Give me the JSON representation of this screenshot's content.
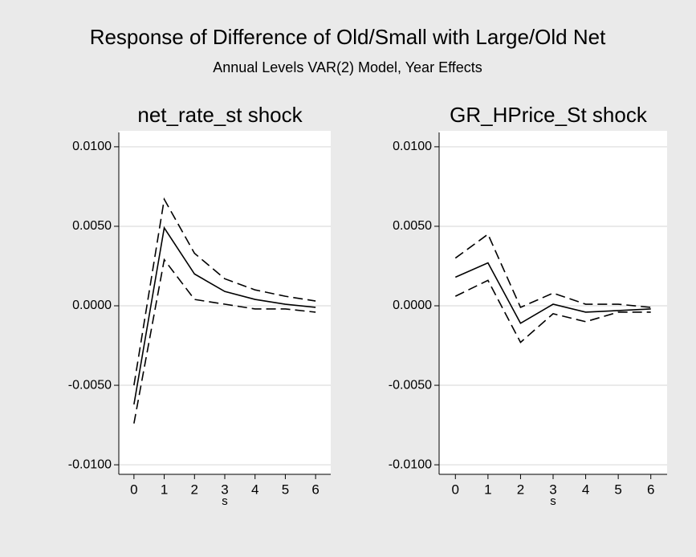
{
  "title": "Response of Difference of Old/Small with Large/Old Net",
  "subtitle": "Annual Levels VAR(2) Model, Year Effects",
  "chart_data": [
    {
      "type": "line",
      "title": "net_rate_st shock",
      "xlabel": "s",
      "x": [
        0,
        1,
        2,
        3,
        4,
        5,
        6
      ],
      "xlim": [
        -0.5,
        6.5
      ],
      "xticks": [
        0,
        1,
        2,
        3,
        4,
        5,
        6
      ],
      "ylim": [
        -0.0106,
        0.0106
      ],
      "yticks": [
        {
          "value": -0.01,
          "label": "-0.0100"
        },
        {
          "value": -0.005,
          "label": "-0.0050"
        },
        {
          "value": 0,
          "label": "0.0000"
        },
        {
          "value": 0.005,
          "label": "0.0050"
        },
        {
          "value": 0.01,
          "label": "0.0100"
        }
      ],
      "grid": true,
      "series": [
        {
          "color": "#000000",
          "dashed": false,
          "values": [
            -0.0062,
            0.0049,
            0.002,
            0.0009,
            0.0004,
            0.0001,
            -0.0001
          ]
        },
        {
          "color": "#000000",
          "dashed": true,
          "values": [
            -0.005,
            0.0067,
            0.0033,
            0.0017,
            0.001,
            0.0006,
            0.0003
          ]
        },
        {
          "color": "#000000",
          "dashed": true,
          "values": [
            -0.0074,
            0.0029,
            0.0004,
            0.0001,
            -0.0002,
            -0.0002,
            -0.0004
          ]
        }
      ]
    },
    {
      "type": "line",
      "title": "GR_HPrice_St shock",
      "xlabel": "s",
      "x": [
        0,
        1,
        2,
        3,
        4,
        5,
        6
      ],
      "xlim": [
        -0.5,
        6.5
      ],
      "xticks": [
        0,
        1,
        2,
        3,
        4,
        5,
        6
      ],
      "ylim": [
        -0.0106,
        0.0106
      ],
      "yticks": [
        {
          "value": -0.01,
          "label": "-0.0100"
        },
        {
          "value": -0.005,
          "label": "-0.0050"
        },
        {
          "value": 0,
          "label": "0.0000"
        },
        {
          "value": 0.005,
          "label": "0.0050"
        },
        {
          "value": 0.01,
          "label": "0.0100"
        }
      ],
      "grid": true,
      "series": [
        {
          "color": "#000000",
          "dashed": false,
          "values": [
            0.0018,
            0.0027,
            -0.0011,
            0.0001,
            -0.0004,
            -0.0003,
            -0.0002
          ]
        },
        {
          "color": "#000000",
          "dashed": true,
          "values": [
            0.003,
            0.0045,
            -0.0001,
            0.0008,
            0.0001,
            0.0001,
            -0.0001
          ]
        },
        {
          "color": "#000000",
          "dashed": true,
          "values": [
            0.0006,
            0.0016,
            -0.0023,
            -0.0005,
            -0.001,
            -0.0004,
            -0.0004
          ]
        }
      ]
    }
  ]
}
